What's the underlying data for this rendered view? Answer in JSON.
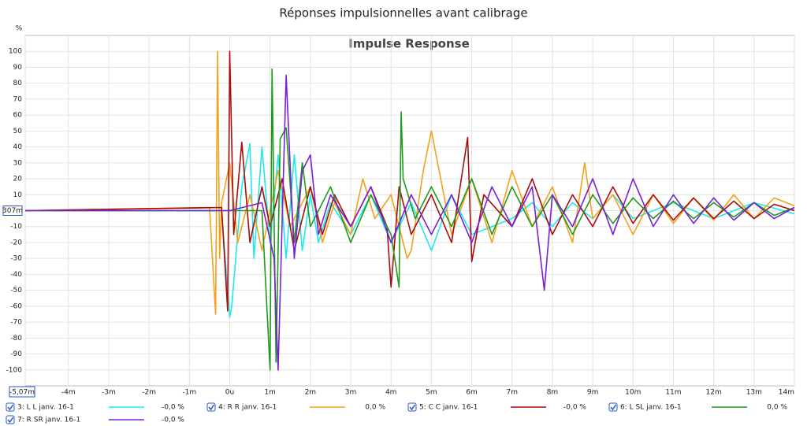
{
  "chart_data": {
    "type": "line",
    "title": "Réponses impulsionnelles avant calibrage",
    "subtitle": "Impulse Response",
    "y_label": "%",
    "cursor_label": "307m",
    "xlim": [
      -5.07,
      14
    ],
    "ylim": [
      -110,
      110
    ],
    "grid": true,
    "xticks": [
      {
        "value": -5.07,
        "label": "-5,07m"
      },
      {
        "value": -4,
        "label": "-4m"
      },
      {
        "value": -3,
        "label": "-3m"
      },
      {
        "value": -2,
        "label": "-2m"
      },
      {
        "value": -1,
        "label": "-1m"
      },
      {
        "value": 0,
        "label": "0u"
      },
      {
        "value": 1,
        "label": "1m"
      },
      {
        "value": 2,
        "label": "2m"
      },
      {
        "value": 3,
        "label": "3m"
      },
      {
        "value": 4,
        "label": "4m"
      },
      {
        "value": 5,
        "label": "5m"
      },
      {
        "value": 6,
        "label": "6m"
      },
      {
        "value": 7,
        "label": "7m"
      },
      {
        "value": 8,
        "label": "8m"
      },
      {
        "value": 9,
        "label": "9m"
      },
      {
        "value": 10,
        "label": "10m"
      },
      {
        "value": 11,
        "label": "11m"
      },
      {
        "value": 12,
        "label": "12m"
      },
      {
        "value": 13,
        "label": "13m"
      },
      {
        "value": 14,
        "label": "14m"
      }
    ],
    "yticks": [
      100,
      90,
      80,
      70,
      60,
      50,
      40,
      30,
      20,
      10,
      0,
      -10,
      -20,
      -30,
      -40,
      -50,
      -60,
      -70,
      -80,
      -90,
      -100
    ],
    "series": [
      {
        "name": "3: L L janv. 16-1",
        "color": "#1ee8f0",
        "cursor_value": "-0,0 %",
        "x": [
          -5.07,
          -0.2,
          0,
          0.05,
          0.3,
          0.5,
          0.6,
          0.8,
          1,
          1.2,
          1.4,
          1.6,
          1.8,
          2,
          2.2,
          2.5,
          3,
          3.5,
          4,
          4.5,
          5,
          5.5,
          6,
          6.5,
          7,
          7.5,
          8,
          8.5,
          9,
          9.5,
          10,
          11,
          12,
          13,
          14
        ],
        "values": [
          0,
          0,
          -67,
          -60,
          15,
          42,
          -30,
          40,
          -20,
          35,
          -30,
          35,
          -25,
          10,
          -20,
          5,
          -15,
          10,
          -20,
          5,
          -25,
          10,
          -15,
          -10,
          -5,
          5,
          -10,
          5,
          -5,
          10,
          -5,
          5,
          -5,
          5,
          -2
        ]
      },
      {
        "name": "4: R R janv. 16-1",
        "color": "#f5a01a",
        "cursor_value": "0,0 %",
        "x": [
          -5.07,
          -0.5,
          -0.35,
          -0.3,
          -0.25,
          -0.2,
          0,
          0.2,
          0.5,
          0.8,
          1.2,
          1.5,
          2,
          2.3,
          2.6,
          3,
          3.3,
          3.6,
          4,
          4.4,
          4.5,
          4.8,
          5,
          5.5,
          6,
          6.5,
          7,
          7.5,
          8,
          8.5,
          8.8,
          9,
          9.5,
          10,
          10.5,
          11,
          11.5,
          12,
          12.5,
          13,
          13.5,
          14
        ],
        "values": [
          0,
          2,
          -65,
          100,
          -30,
          5,
          30,
          -20,
          10,
          -25,
          25,
          -10,
          15,
          -20,
          5,
          -15,
          20,
          -5,
          10,
          -30,
          -25,
          25,
          50,
          -15,
          20,
          -20,
          25,
          -10,
          15,
          -20,
          30,
          -5,
          10,
          -15,
          10,
          -8,
          8,
          -6,
          10,
          -5,
          8,
          3
        ]
      },
      {
        "name": "5: C C janv. 16-1",
        "color": "#a80c0c",
        "cursor_value": "-0,0 %",
        "x": [
          -5.07,
          -0.2,
          -0.05,
          0,
          0.1,
          0.3,
          0.5,
          0.8,
          1,
          1.3,
          1.6,
          2,
          2.3,
          2.6,
          3,
          3.5,
          3.9,
          4,
          4.2,
          4.5,
          5,
          5.5,
          5.9,
          6,
          6.3,
          7,
          7.5,
          8,
          8.5,
          9,
          9.5,
          10,
          10.5,
          11,
          11.5,
          12,
          12.5,
          13,
          13.5,
          14
        ],
        "values": [
          0,
          2,
          -63,
          100,
          -15,
          43,
          -20,
          15,
          -10,
          20,
          -25,
          15,
          -15,
          10,
          -10,
          15,
          -10,
          -48,
          15,
          -15,
          10,
          -20,
          46,
          -32,
          10,
          -10,
          20,
          -15,
          10,
          -10,
          15,
          -8,
          10,
          -6,
          8,
          -5,
          6,
          -5,
          4,
          0
        ]
      },
      {
        "name": "6: L SL janv. 16-1",
        "color": "#1c9a1c",
        "cursor_value": "0,0 %",
        "x": [
          -5.07,
          0.8,
          1,
          1.05,
          1.15,
          1.25,
          1.4,
          1.6,
          1.8,
          2,
          2.5,
          3,
          3.5,
          4,
          4.2,
          4.25,
          4.3,
          4.6,
          5,
          5.5,
          6,
          6.5,
          7,
          7.5,
          8,
          8.5,
          9,
          9.5,
          10,
          10.5,
          11,
          11.5,
          12,
          12.5,
          13,
          13.5,
          14
        ],
        "values": [
          0,
          0,
          -100,
          89,
          -95,
          45,
          52,
          -20,
          30,
          -10,
          15,
          -20,
          10,
          -15,
          -48,
          62,
          20,
          -5,
          15,
          -10,
          20,
          -15,
          15,
          -10,
          10,
          -15,
          10,
          -8,
          8,
          -5,
          6,
          -5,
          5,
          -4,
          5,
          -3,
          2
        ]
      },
      {
        "name": "7: R SR janv. 16-1",
        "color": "#7a1fd6",
        "cursor_value": "-0,0 %",
        "x": [
          -5.07,
          0,
          0.8,
          1.1,
          1.2,
          1.4,
          1.6,
          1.8,
          2,
          2.2,
          2.5,
          3,
          3.5,
          4,
          4.5,
          5,
          5.5,
          6,
          6.5,
          7,
          7.5,
          7.8,
          8,
          8.5,
          9,
          9.5,
          10,
          10.5,
          11,
          11.5,
          12,
          12.5,
          13,
          13.5,
          14
        ],
        "values": [
          0,
          0,
          5,
          -30,
          -100,
          85,
          -30,
          25,
          35,
          -15,
          10,
          -10,
          15,
          -20,
          10,
          -15,
          10,
          -20,
          15,
          -10,
          15,
          -50,
          10,
          -10,
          20,
          -15,
          20,
          -10,
          10,
          -8,
          8,
          -6,
          5,
          -5,
          2
        ]
      }
    ]
  }
}
